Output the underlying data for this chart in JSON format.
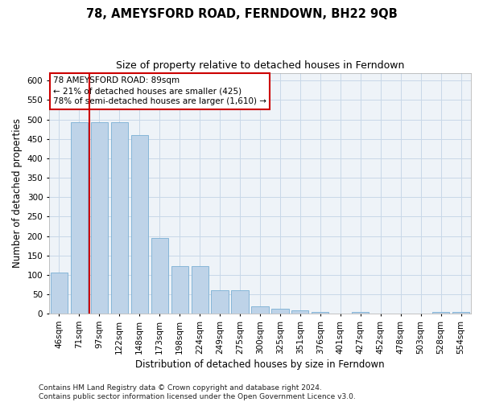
{
  "title": "78, AMEYSFORD ROAD, FERNDOWN, BH22 9QB",
  "subtitle": "Size of property relative to detached houses in Ferndown",
  "xlabel": "Distribution of detached houses by size in Ferndown",
  "ylabel": "Number of detached properties",
  "categories": [
    "46sqm",
    "71sqm",
    "97sqm",
    "122sqm",
    "148sqm",
    "173sqm",
    "198sqm",
    "224sqm",
    "249sqm",
    "275sqm",
    "300sqm",
    "325sqm",
    "351sqm",
    "376sqm",
    "401sqm",
    "427sqm",
    "452sqm",
    "478sqm",
    "503sqm",
    "528sqm",
    "554sqm"
  ],
  "values": [
    107,
    492,
    492,
    492,
    460,
    195,
    122,
    122,
    60,
    60,
    20,
    14,
    8,
    5,
    0,
    5,
    0,
    0,
    0,
    5,
    5
  ],
  "bar_color": "#bed3e8",
  "bar_edge_color": "#7aafd4",
  "vline_x": 1.5,
  "vline_color": "#cc0000",
  "annotation_title": "78 AMEYSFORD ROAD: 89sqm",
  "annotation_line1": "← 21% of detached houses are smaller (425)",
  "annotation_line2": "78% of semi-detached houses are larger (1,610) →",
  "annotation_box_edgecolor": "#cc0000",
  "ylim": [
    0,
    620
  ],
  "yticks": [
    0,
    50,
    100,
    150,
    200,
    250,
    300,
    350,
    400,
    450,
    500,
    550,
    600
  ],
  "grid_color": "#c8d8e8",
  "background_color": "#eef3f8",
  "footer": "Contains HM Land Registry data © Crown copyright and database right 2024.\nContains public sector information licensed under the Open Government Licence v3.0.",
  "title_fontsize": 10.5,
  "subtitle_fontsize": 9,
  "xlabel_fontsize": 8.5,
  "ylabel_fontsize": 8.5,
  "tick_fontsize": 7.5,
  "ann_fontsize": 7.5,
  "footer_fontsize": 6.5
}
